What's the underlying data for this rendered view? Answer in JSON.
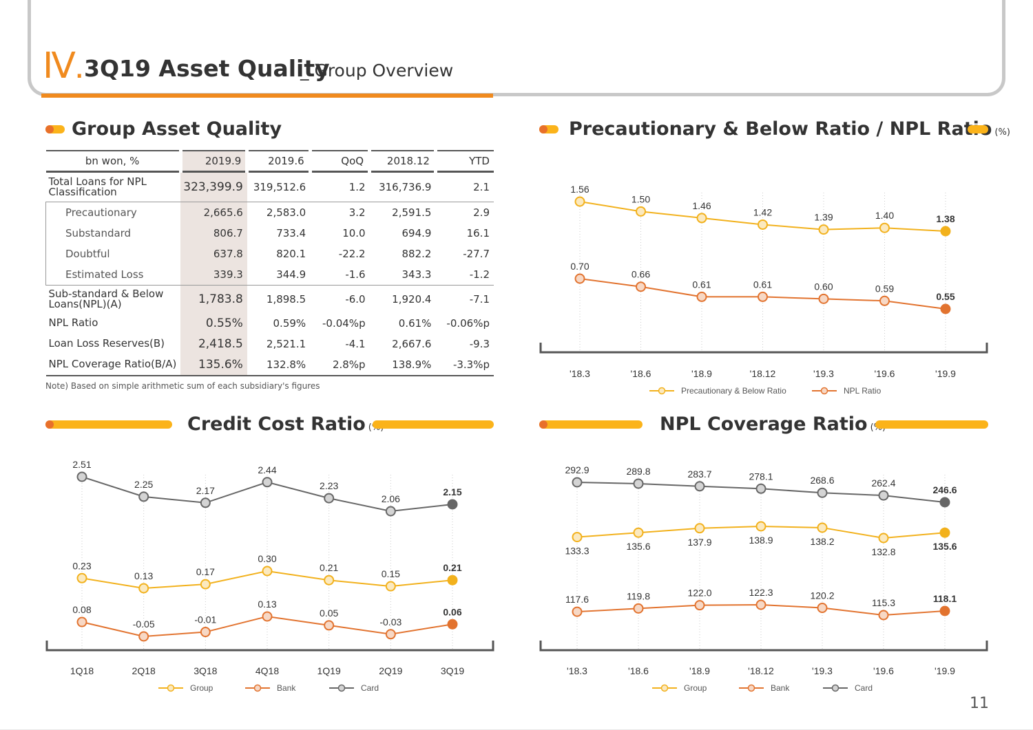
{
  "header": {
    "roman": "Ⅳ.",
    "title": "3Q19 Asset Quality",
    "subtitle": "_ Group Overview"
  },
  "page_number": "11",
  "colors": {
    "accent": "#f08a1e",
    "gold": "#fbb31a",
    "group": "#f2b11c",
    "bank": "#e2732f",
    "card": "#666666"
  },
  "table": {
    "heading": "Group Asset Quality",
    "columns": [
      "bn won, %",
      "2019.9",
      "2019.6",
      "QoQ",
      "2018.12",
      "YTD"
    ],
    "rows": [
      {
        "label": "Total Loans for NPL Classification",
        "values": [
          "323,399.9",
          "319,512.6",
          "1.2",
          "316,736.9",
          "2.1"
        ]
      },
      {
        "label": "Precautionary",
        "values": [
          "2,665.6",
          "2,583.0",
          "3.2",
          "2,591.5",
          "2.9"
        ]
      },
      {
        "label": "Substandard",
        "values": [
          "806.7",
          "733.4",
          "10.0",
          "694.9",
          "16.1"
        ]
      },
      {
        "label": "Doubtful",
        "values": [
          "637.8",
          "820.1",
          "-22.2",
          "882.2",
          "-27.7"
        ]
      },
      {
        "label": "Estimated Loss",
        "values": [
          "339.3",
          "344.9",
          "-1.6",
          "343.3",
          "-1.2"
        ]
      },
      {
        "label": "Sub-standard & Below Loans(NPL)(A)",
        "values": [
          "1,783.8",
          "1,898.5",
          "-6.0",
          "1,920.4",
          "-7.1"
        ]
      },
      {
        "label": "NPL Ratio",
        "values": [
          "0.55%",
          "0.59%",
          "-0.04%p",
          "0.61%",
          "-0.06%p"
        ]
      },
      {
        "label": "Loan Loss Reserves(B)",
        "values": [
          "2,418.5",
          "2,521.1",
          "-4.1",
          "2,667.6",
          "-9.3"
        ]
      },
      {
        "label": "NPL Coverage Ratio(B/A)",
        "values": [
          "135.6%",
          "132.8%",
          "2.8%p",
          "138.9%",
          "-3.3%p"
        ]
      }
    ],
    "note": "Note) Based on simple arithmetic sum of each subsidiary's figures"
  },
  "chart_data": [
    {
      "type": "line",
      "title": "Precautionary & Below Ratio / NPL Ratio",
      "unit": "(%)",
      "x": [
        "'18.3",
        "'18.6",
        "'18.9",
        "'18.12",
        "'19.3",
        "'19.6",
        "'19.9"
      ],
      "ylim": [
        0.4,
        1.7
      ],
      "legend": "bottom",
      "series": [
        {
          "name": "Precautionary & Below Ratio",
          "values": [
            1.56,
            1.5,
            1.46,
            1.42,
            1.39,
            1.4,
            1.38
          ],
          "labels": [
            "1.56",
            "1.50",
            "1.46",
            "1.42",
            "1.39",
            "1.40",
            "1.38"
          ],
          "color": "#f2b11c",
          "label_pos": "above"
        },
        {
          "name": "NPL Ratio",
          "values": [
            0.7,
            0.66,
            0.61,
            0.61,
            0.6,
            0.59,
            0.55
          ],
          "labels": [
            "0.70",
            "0.66",
            "0.61",
            "0.61",
            "0.60",
            "0.59",
            "0.55"
          ],
          "color": "#e2732f",
          "label_pos": "above"
        }
      ]
    },
    {
      "type": "line",
      "title": "Credit Cost Ratio",
      "unit": "(%)",
      "x": [
        "1Q18",
        "2Q18",
        "3Q18",
        "4Q18",
        "1Q19",
        "2Q19",
        "3Q19"
      ],
      "legend": "bottom",
      "series": [
        {
          "name": "Group",
          "values": [
            0.23,
            0.13,
            0.17,
            0.3,
            0.21,
            0.15,
            0.21
          ],
          "labels": [
            "0.23",
            "0.13",
            "0.17",
            "0.30",
            "0.21",
            "0.15",
            "0.21"
          ],
          "color": "#f2b11c",
          "label_pos": "above"
        },
        {
          "name": "Bank",
          "values": [
            0.08,
            -0.05,
            -0.01,
            0.13,
            0.05,
            -0.03,
            0.06
          ],
          "labels": [
            "0.08",
            "-0.05",
            "-0.01",
            "0.13",
            "0.05",
            "-0.03",
            "0.06"
          ],
          "color": "#e2732f",
          "label_pos": "above"
        },
        {
          "name": "Card",
          "values": [
            2.51,
            2.25,
            2.17,
            2.44,
            2.23,
            2.06,
            2.15
          ],
          "labels": [
            "2.51",
            "2.25",
            "2.17",
            "2.44",
            "2.23",
            "2.06",
            "2.15"
          ],
          "color": "#666666",
          "label_pos": "above"
        }
      ]
    },
    {
      "type": "line",
      "title": "NPL Coverage Ratio",
      "unit": "(%)",
      "x": [
        "'18.3",
        "'18.6",
        "'18.9",
        "'18.12",
        "'19.3",
        "'19.6",
        "'19.9"
      ],
      "legend": "bottom",
      "series": [
        {
          "name": "Group",
          "values": [
            133.3,
            135.6,
            137.9,
            138.9,
            138.2,
            132.8,
            135.6
          ],
          "labels": [
            "133.3",
            "135.6",
            "137.9",
            "138.9",
            "138.2",
            "132.8",
            "135.6"
          ],
          "color": "#f2b11c",
          "label_pos": "below"
        },
        {
          "name": "Bank",
          "values": [
            117.6,
            119.8,
            122.0,
            122.3,
            120.2,
            115.3,
            118.1
          ],
          "labels": [
            "117.6",
            "119.8",
            "122.0",
            "122.3",
            "120.2",
            "115.3",
            "118.1"
          ],
          "color": "#e2732f",
          "label_pos": "above"
        },
        {
          "name": "Card",
          "values": [
            292.9,
            289.8,
            283.7,
            278.1,
            268.6,
            262.4,
            246.6
          ],
          "labels": [
            "292.9",
            "289.8",
            "283.7",
            "278.1",
            "268.6",
            "262.4",
            "246.6"
          ],
          "color": "#666666",
          "label_pos": "above"
        }
      ]
    }
  ]
}
